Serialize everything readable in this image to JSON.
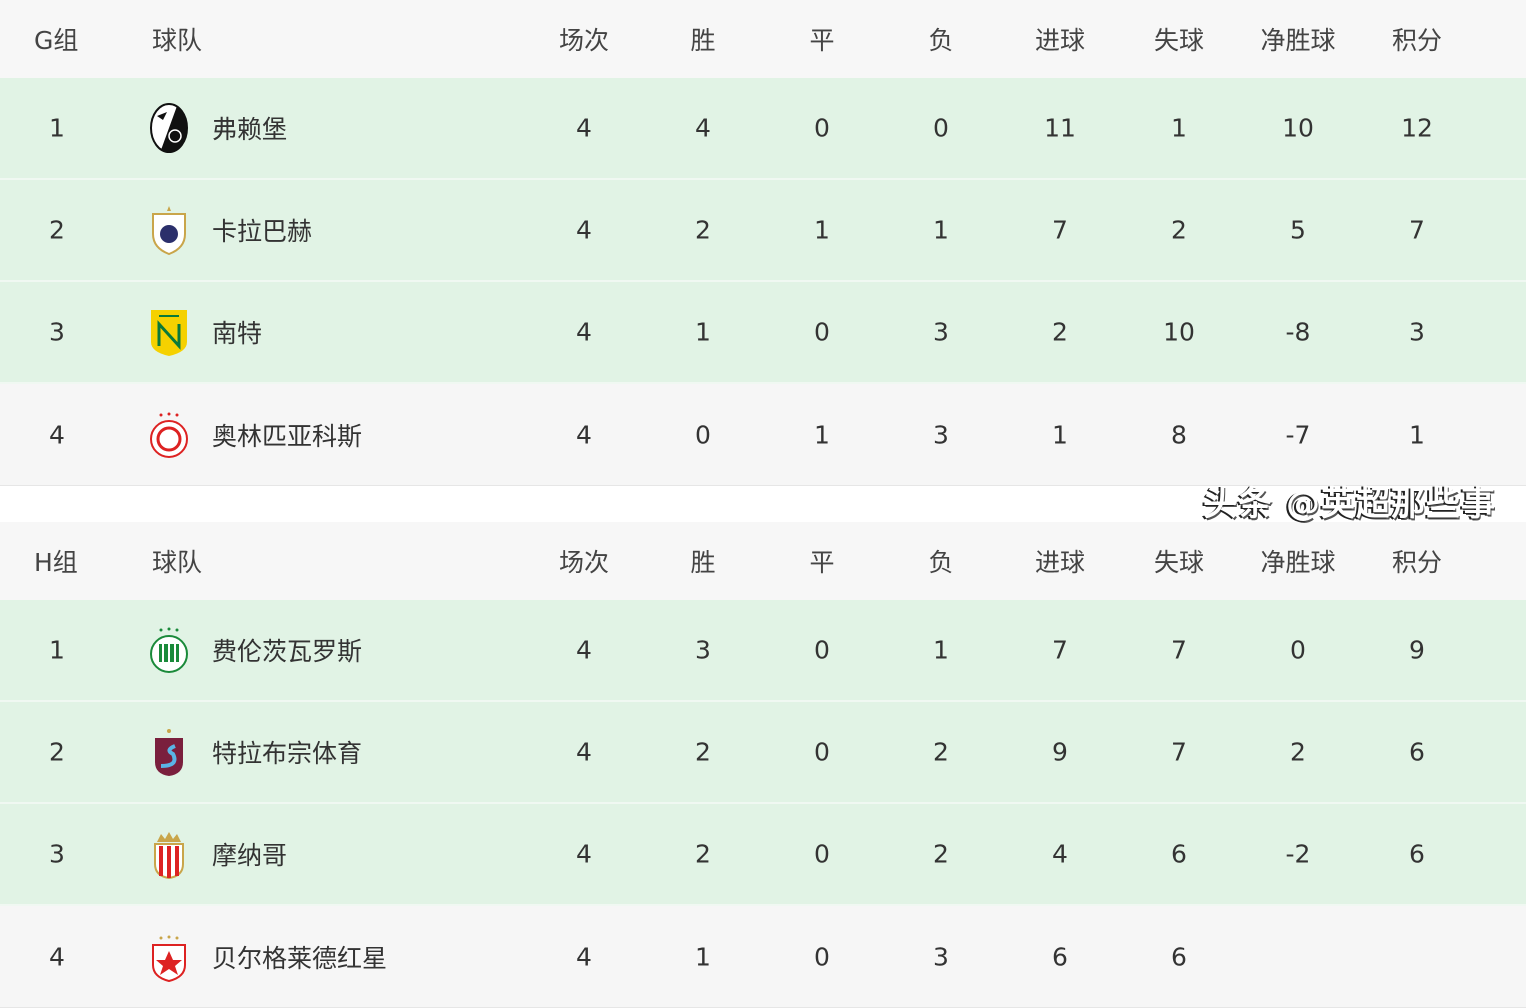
{
  "columns": [
    "球队",
    "场次",
    "胜",
    "平",
    "负",
    "进球",
    "失球",
    "净胜球",
    "积分"
  ],
  "groups": [
    {
      "label": "G组",
      "rows": [
        {
          "rank": "1",
          "team": "弗赖堡",
          "logo": "freiburg-crest-icon",
          "stats": [
            "4",
            "4",
            "0",
            "0",
            "11",
            "1",
            "10",
            "12"
          ]
        },
        {
          "rank": "2",
          "team": "卡拉巴赫",
          "logo": "qarabag-crest-icon",
          "stats": [
            "4",
            "2",
            "1",
            "1",
            "7",
            "2",
            "5",
            "7"
          ]
        },
        {
          "rank": "3",
          "team": "南特",
          "logo": "nantes-crest-icon",
          "stats": [
            "4",
            "1",
            "0",
            "3",
            "2",
            "10",
            "-8",
            "3"
          ]
        },
        {
          "rank": "4",
          "team": "奥林匹亚科斯",
          "logo": "olympiacos-crest-icon",
          "stats": [
            "4",
            "0",
            "1",
            "3",
            "1",
            "8",
            "-7",
            "1"
          ]
        }
      ]
    },
    {
      "label": "H组",
      "rows": [
        {
          "rank": "1",
          "team": "费伦茨瓦罗斯",
          "logo": "ferencvaros-crest-icon",
          "stats": [
            "4",
            "3",
            "0",
            "1",
            "7",
            "7",
            "0",
            "9"
          ]
        },
        {
          "rank": "2",
          "team": "特拉布宗体育",
          "logo": "trabzonspor-crest-icon",
          "stats": [
            "4",
            "2",
            "0",
            "2",
            "9",
            "7",
            "2",
            "6"
          ]
        },
        {
          "rank": "3",
          "team": "摩纳哥",
          "logo": "monaco-crest-icon",
          "stats": [
            "4",
            "2",
            "0",
            "2",
            "4",
            "6",
            "-2",
            "6"
          ]
        },
        {
          "rank": "4",
          "team": "贝尔格莱德红星",
          "logo": "red-star-crest-icon",
          "stats": [
            "4",
            "1",
            "0",
            "3",
            "6",
            "6",
            "",
            ""
          ]
        }
      ]
    }
  ],
  "watermark": "头条 @英超那些事",
  "colors": {
    "header_bg": "#f7f7f7",
    "qualified_bg": "#e1f3e5",
    "other_bg": "#f6f6f6",
    "text": "#333333"
  }
}
